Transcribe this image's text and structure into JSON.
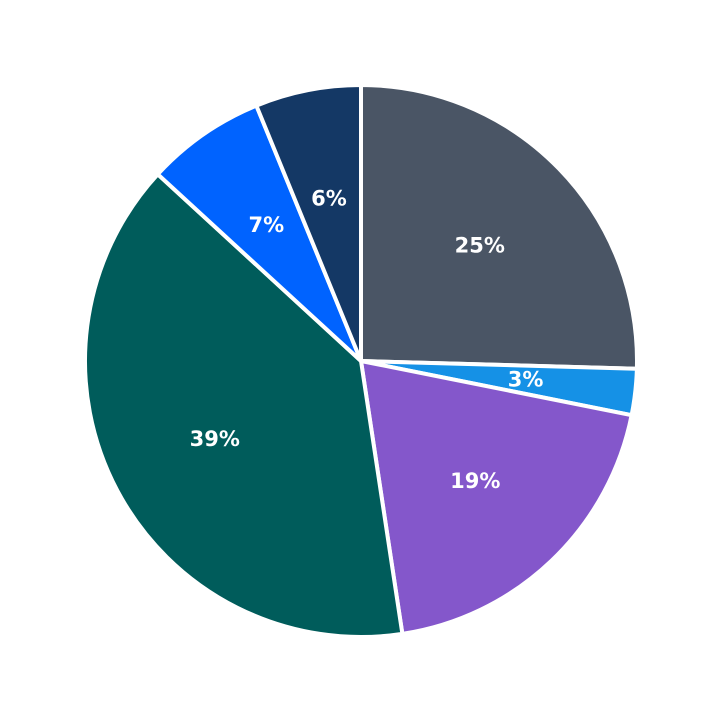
{
  "chart_data": {
    "type": "pie",
    "title": "",
    "start_angle": "12 o'clock, clockwise",
    "slices": [
      {
        "label": "25%",
        "value": 25.5,
        "color": "#4a5565"
      },
      {
        "label": "3%",
        "value": 2.7,
        "color": "#1591e6"
      },
      {
        "label": "19%",
        "value": 19.5,
        "color": "#8457cb"
      },
      {
        "label": "39%",
        "value": 39.3,
        "color": "#005c5b"
      },
      {
        "label": "7%",
        "value": 7.0,
        "color": "#0063ff"
      },
      {
        "label": "6%",
        "value": 6.2,
        "color": "#143865"
      }
    ],
    "edge_color": "#ffffff",
    "legend": null
  }
}
